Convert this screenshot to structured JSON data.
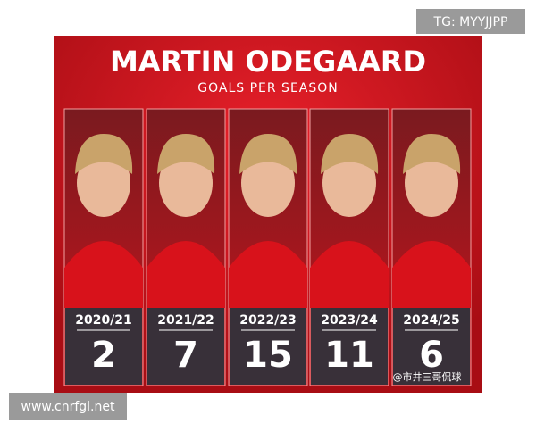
{
  "header": {
    "title": "MARTIN ODEGAARD",
    "subtitle": "GOALS PER SEASON"
  },
  "seasons": [
    {
      "season": "2020/21",
      "goals": 2
    },
    {
      "season": "2021/22",
      "goals": 7
    },
    {
      "season": "2022/23",
      "goals": 15
    },
    {
      "season": "2023/24",
      "goals": 11
    },
    {
      "season": "2024/25",
      "goals": 6
    }
  ],
  "watermarks": {
    "top": "TG: MYYJJPP",
    "bottom": "www.cnrfgl.net",
    "credit": "@市井三哥侃球"
  }
}
